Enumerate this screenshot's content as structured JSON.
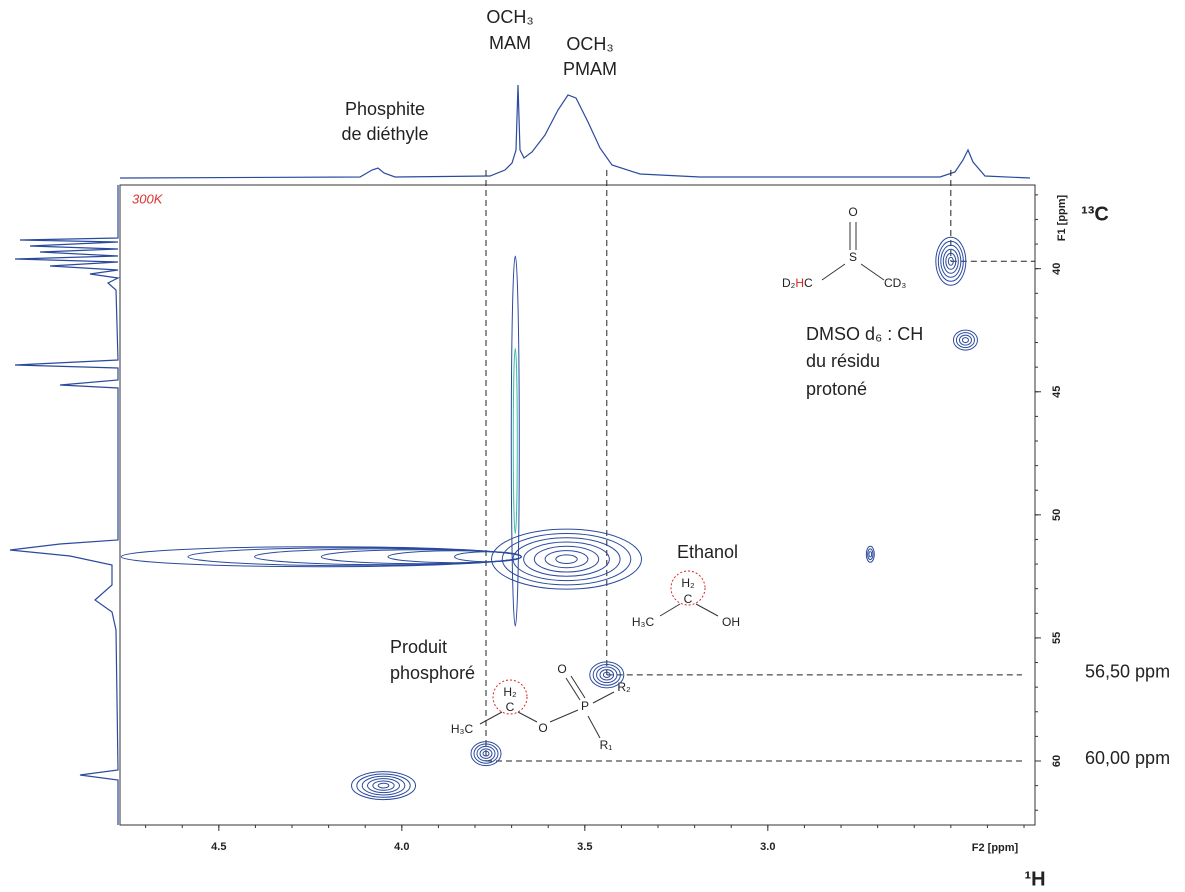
{
  "chart_data": {
    "type": "contour",
    "xlabel": "F2 [ppm]",
    "ylabel": "F1 [ppm]",
    "xlim": [
      4.77,
      2.27
    ],
    "ylim": [
      36.6,
      62.6
    ],
    "xticks": [
      {
        "value": 4.5,
        "label": "4.5"
      },
      {
        "value": 4.0,
        "label": "4.0"
      },
      {
        "value": 3.5,
        "label": "3.5"
      },
      {
        "value": 3.0,
        "label": "3.0"
      }
    ],
    "yticks": [
      40,
      45,
      50,
      55,
      60
    ],
    "color": "#2b4a9e",
    "peaks": {
      "x": [
        4.05,
        3.77,
        3.44,
        3.55,
        3.69,
        2.72,
        2.5,
        2.46,
        3.69
      ],
      "y": [
        61.0,
        59.7,
        56.5,
        51.8,
        51.7,
        51.6,
        39.7,
        42.9,
        47.0
      ]
    },
    "vguides": [
      3.77,
      3.44,
      2.5
    ],
    "hguides": [
      {
        "value": 56.5,
        "label": "56,50 ppm"
      },
      {
        "value": 60.0,
        "label": "60,00 ppm"
      },
      {
        "value": 39.7,
        "label": ""
      }
    ],
    "temperature": "300K",
    "nucleus_x": "¹H",
    "nucleus_y": "¹³C",
    "annotations": {
      "phosphite": [
        "Phosphite",
        "de diéthyle"
      ],
      "och3_mam": [
        "OCH₃",
        "MAM"
      ],
      "och3_pmam": [
        "OCH₃",
        "PMAM"
      ],
      "dmso": [
        "DMSO d₆ : CH",
        "du résidu",
        "protoné"
      ],
      "ethanol": "Ethanol",
      "produit": [
        "Produit",
        "phosphoré"
      ]
    },
    "structures": {
      "dmso": [
        "O",
        "S",
        "D₂",
        "H",
        "C",
        "CD₃"
      ],
      "ethanol": [
        "H₂",
        "C",
        "H₃C",
        "OH"
      ],
      "produit": [
        "H₂",
        "C",
        "H₃C",
        "O",
        "P",
        "O",
        "R₂",
        "R₁"
      ]
    }
  }
}
